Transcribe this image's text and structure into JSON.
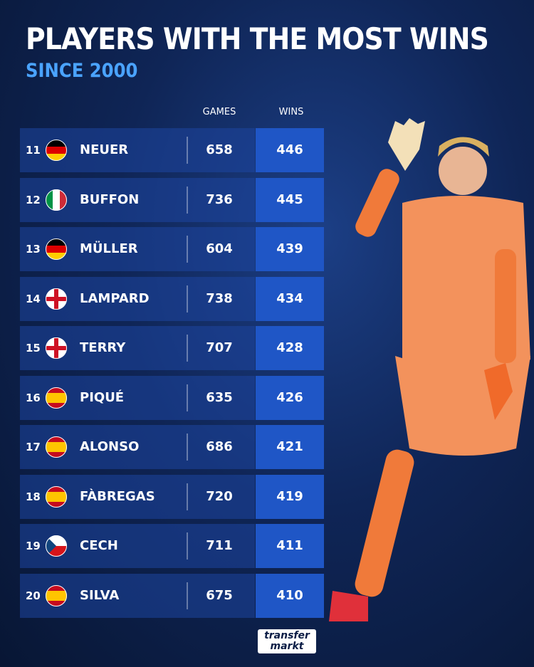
{
  "header": {
    "title": "PLAYERS WITH THE MOST WINS",
    "subtitle": "SINCE 2000"
  },
  "table": {
    "columns": [
      "GAMES",
      "WINS"
    ],
    "rows": [
      [
        11,
        "NEUER",
        658,
        446
      ],
      [
        12,
        "BUFFON",
        736,
        445
      ],
      [
        13,
        "MÜLLER",
        604,
        439
      ],
      [
        14,
        "LAMPARD",
        738,
        434
      ],
      [
        15,
        "TERRY",
        707,
        428
      ],
      [
        16,
        "PIQUÉ",
        635,
        426
      ],
      [
        17,
        "ALONSO",
        686,
        421
      ],
      [
        18,
        "FÀBREGAS",
        720,
        419
      ],
      [
        19,
        "CECH",
        711,
        411
      ],
      [
        20,
        "SILVA",
        675,
        410
      ]
    ]
  },
  "logo": [
    "transfer",
    "markt"
  ]
}
